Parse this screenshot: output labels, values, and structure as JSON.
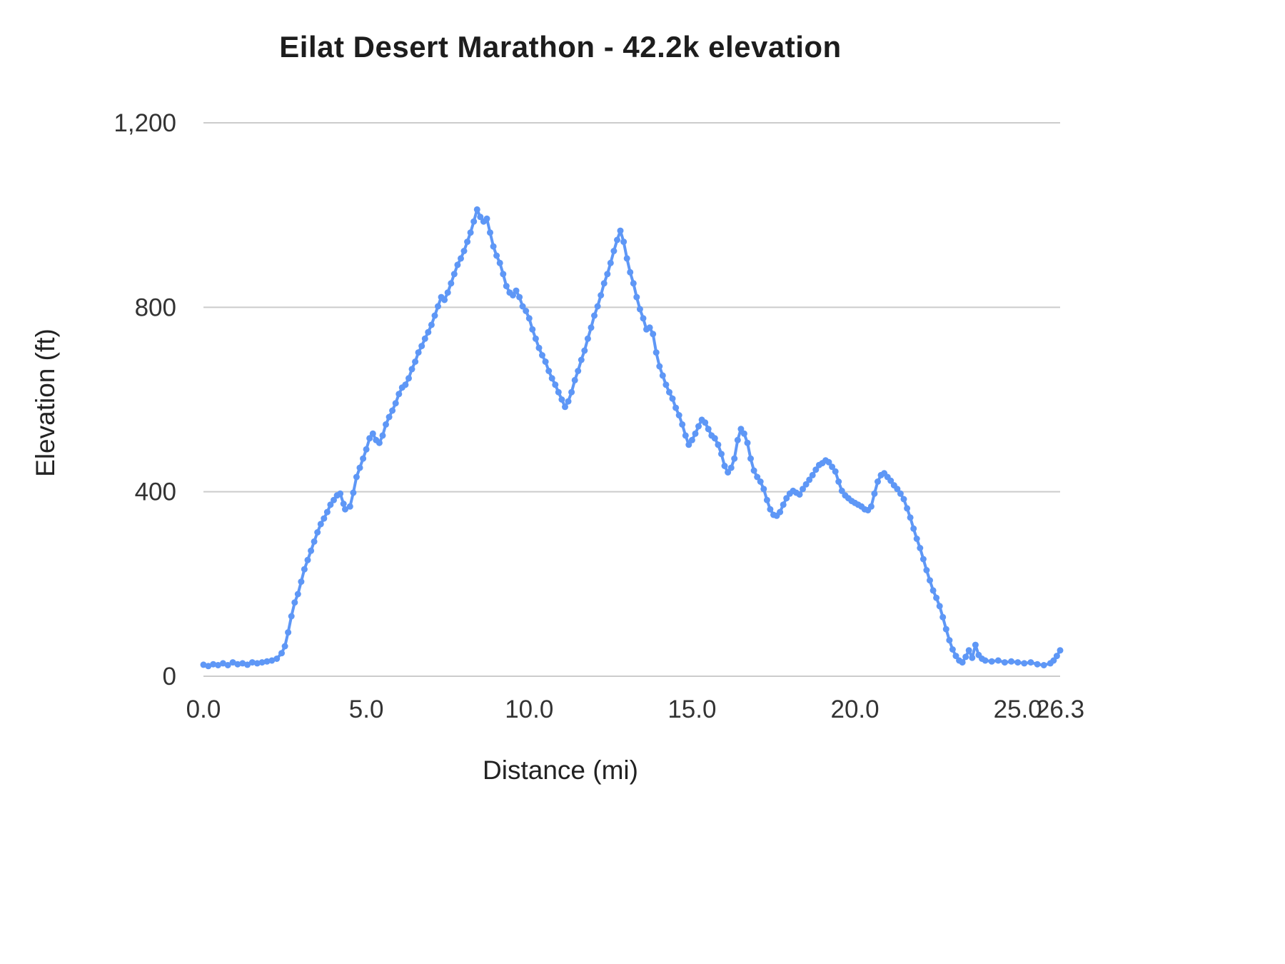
{
  "chart_data": {
    "type": "line",
    "title": "Eilat Desert Marathon - 42.2k elevation",
    "xlabel": "Distance (mi)",
    "ylabel": "Elevation (ft)",
    "xlim": [
      0,
      26.3
    ],
    "ylim": [
      0,
      1200
    ],
    "grid": "horizontal-only",
    "legend": "none",
    "line_color": "#5e97f6",
    "grid_color": "#cccccc",
    "tick_label_color": "#333333",
    "x_ticks": [
      {
        "v": 0.0,
        "label": "0.0"
      },
      {
        "v": 5.0,
        "label": "5.0"
      },
      {
        "v": 10.0,
        "label": "10.0"
      },
      {
        "v": 15.0,
        "label": "15.0"
      },
      {
        "v": 20.0,
        "label": "20.0"
      },
      {
        "v": 25.0,
        "label": "25.0"
      },
      {
        "v": 26.3,
        "label": "26.3"
      }
    ],
    "y_ticks": [
      {
        "v": 0,
        "label": "0"
      },
      {
        "v": 400,
        "label": "400"
      },
      {
        "v": 800,
        "label": "800"
      },
      {
        "v": 1200,
        "label": "1,200"
      }
    ],
    "series": [
      {
        "name": "Elevation",
        "points": [
          [
            0.0,
            25
          ],
          [
            0.15,
            22
          ],
          [
            0.3,
            26
          ],
          [
            0.45,
            24
          ],
          [
            0.6,
            28
          ],
          [
            0.75,
            24
          ],
          [
            0.9,
            30
          ],
          [
            1.05,
            26
          ],
          [
            1.2,
            28
          ],
          [
            1.35,
            25
          ],
          [
            1.5,
            30
          ],
          [
            1.65,
            28
          ],
          [
            1.8,
            30
          ],
          [
            1.95,
            32
          ],
          [
            2.1,
            34
          ],
          [
            2.25,
            38
          ],
          [
            2.4,
            50
          ],
          [
            2.5,
            65
          ],
          [
            2.6,
            95
          ],
          [
            2.7,
            130
          ],
          [
            2.8,
            160
          ],
          [
            2.9,
            178
          ],
          [
            3.0,
            205
          ],
          [
            3.1,
            232
          ],
          [
            3.2,
            252
          ],
          [
            3.3,
            272
          ],
          [
            3.4,
            292
          ],
          [
            3.5,
            312
          ],
          [
            3.6,
            330
          ],
          [
            3.7,
            342
          ],
          [
            3.8,
            356
          ],
          [
            3.9,
            372
          ],
          [
            4.0,
            382
          ],
          [
            4.1,
            392
          ],
          [
            4.2,
            396
          ],
          [
            4.3,
            374
          ],
          [
            4.35,
            362
          ],
          [
            4.5,
            368
          ],
          [
            4.6,
            398
          ],
          [
            4.7,
            432
          ],
          [
            4.8,
            452
          ],
          [
            4.9,
            472
          ],
          [
            5.0,
            492
          ],
          [
            5.1,
            516
          ],
          [
            5.2,
            526
          ],
          [
            5.3,
            512
          ],
          [
            5.4,
            506
          ],
          [
            5.5,
            522
          ],
          [
            5.6,
            546
          ],
          [
            5.7,
            562
          ],
          [
            5.8,
            576
          ],
          [
            5.9,
            592
          ],
          [
            6.0,
            612
          ],
          [
            6.1,
            626
          ],
          [
            6.2,
            632
          ],
          [
            6.3,
            646
          ],
          [
            6.4,
            666
          ],
          [
            6.5,
            682
          ],
          [
            6.6,
            702
          ],
          [
            6.7,
            716
          ],
          [
            6.8,
            732
          ],
          [
            6.9,
            746
          ],
          [
            7.0,
            762
          ],
          [
            7.1,
            782
          ],
          [
            7.2,
            802
          ],
          [
            7.3,
            822
          ],
          [
            7.4,
            816
          ],
          [
            7.5,
            832
          ],
          [
            7.6,
            852
          ],
          [
            7.7,
            872
          ],
          [
            7.8,
            892
          ],
          [
            7.9,
            906
          ],
          [
            8.0,
            922
          ],
          [
            8.1,
            942
          ],
          [
            8.2,
            962
          ],
          [
            8.3,
            986
          ],
          [
            8.4,
            1012
          ],
          [
            8.5,
            996
          ],
          [
            8.6,
            986
          ],
          [
            8.7,
            992
          ],
          [
            8.8,
            962
          ],
          [
            8.9,
            932
          ],
          [
            9.0,
            912
          ],
          [
            9.1,
            896
          ],
          [
            9.2,
            872
          ],
          [
            9.3,
            846
          ],
          [
            9.4,
            832
          ],
          [
            9.5,
            826
          ],
          [
            9.6,
            836
          ],
          [
            9.7,
            822
          ],
          [
            9.8,
            802
          ],
          [
            9.9,
            792
          ],
          [
            10.0,
            776
          ],
          [
            10.1,
            752
          ],
          [
            10.2,
            732
          ],
          [
            10.3,
            712
          ],
          [
            10.4,
            696
          ],
          [
            10.5,
            682
          ],
          [
            10.6,
            662
          ],
          [
            10.7,
            646
          ],
          [
            10.8,
            632
          ],
          [
            10.9,
            616
          ],
          [
            11.0,
            600
          ],
          [
            11.1,
            584
          ],
          [
            11.2,
            596
          ],
          [
            11.3,
            616
          ],
          [
            11.4,
            642
          ],
          [
            11.5,
            662
          ],
          [
            11.6,
            686
          ],
          [
            11.7,
            706
          ],
          [
            11.8,
            732
          ],
          [
            11.9,
            756
          ],
          [
            12.0,
            782
          ],
          [
            12.1,
            802
          ],
          [
            12.2,
            826
          ],
          [
            12.3,
            852
          ],
          [
            12.4,
            872
          ],
          [
            12.5,
            896
          ],
          [
            12.6,
            922
          ],
          [
            12.7,
            946
          ],
          [
            12.8,
            966
          ],
          [
            12.9,
            942
          ],
          [
            13.0,
            906
          ],
          [
            13.1,
            876
          ],
          [
            13.2,
            852
          ],
          [
            13.3,
            822
          ],
          [
            13.4,
            796
          ],
          [
            13.5,
            776
          ],
          [
            13.6,
            752
          ],
          [
            13.7,
            756
          ],
          [
            13.8,
            742
          ],
          [
            13.9,
            702
          ],
          [
            14.0,
            672
          ],
          [
            14.1,
            652
          ],
          [
            14.2,
            632
          ],
          [
            14.3,
            616
          ],
          [
            14.4,
            602
          ],
          [
            14.5,
            582
          ],
          [
            14.6,
            566
          ],
          [
            14.7,
            546
          ],
          [
            14.8,
            522
          ],
          [
            14.9,
            502
          ],
          [
            15.0,
            512
          ],
          [
            15.1,
            526
          ],
          [
            15.2,
            542
          ],
          [
            15.3,
            556
          ],
          [
            15.4,
            550
          ],
          [
            15.5,
            536
          ],
          [
            15.6,
            522
          ],
          [
            15.7,
            516
          ],
          [
            15.8,
            502
          ],
          [
            15.9,
            482
          ],
          [
            16.0,
            456
          ],
          [
            16.1,
            442
          ],
          [
            16.2,
            452
          ],
          [
            16.3,
            472
          ],
          [
            16.4,
            512
          ],
          [
            16.5,
            536
          ],
          [
            16.6,
            526
          ],
          [
            16.7,
            506
          ],
          [
            16.8,
            472
          ],
          [
            16.9,
            446
          ],
          [
            17.0,
            432
          ],
          [
            17.1,
            422
          ],
          [
            17.2,
            406
          ],
          [
            17.3,
            382
          ],
          [
            17.4,
            362
          ],
          [
            17.5,
            350
          ],
          [
            17.6,
            348
          ],
          [
            17.7,
            356
          ],
          [
            17.8,
            372
          ],
          [
            17.9,
            386
          ],
          [
            18.0,
            396
          ],
          [
            18.1,
            402
          ],
          [
            18.2,
            398
          ],
          [
            18.3,
            394
          ],
          [
            18.4,
            406
          ],
          [
            18.5,
            416
          ],
          [
            18.6,
            426
          ],
          [
            18.7,
            436
          ],
          [
            18.8,
            448
          ],
          [
            18.9,
            458
          ],
          [
            19.0,
            462
          ],
          [
            19.1,
            468
          ],
          [
            19.2,
            464
          ],
          [
            19.3,
            454
          ],
          [
            19.4,
            444
          ],
          [
            19.5,
            422
          ],
          [
            19.6,
            402
          ],
          [
            19.7,
            392
          ],
          [
            19.8,
            386
          ],
          [
            19.9,
            380
          ],
          [
            20.0,
            376
          ],
          [
            20.1,
            372
          ],
          [
            20.2,
            368
          ],
          [
            20.3,
            362
          ],
          [
            20.4,
            360
          ],
          [
            20.5,
            368
          ],
          [
            20.6,
            396
          ],
          [
            20.7,
            422
          ],
          [
            20.8,
            436
          ],
          [
            20.9,
            440
          ],
          [
            21.0,
            432
          ],
          [
            21.1,
            424
          ],
          [
            21.2,
            414
          ],
          [
            21.3,
            406
          ],
          [
            21.4,
            396
          ],
          [
            21.5,
            384
          ],
          [
            21.6,
            364
          ],
          [
            21.7,
            344
          ],
          [
            21.8,
            320
          ],
          [
            21.9,
            298
          ],
          [
            22.0,
            278
          ],
          [
            22.1,
            254
          ],
          [
            22.2,
            230
          ],
          [
            22.3,
            208
          ],
          [
            22.4,
            186
          ],
          [
            22.5,
            170
          ],
          [
            22.6,
            152
          ],
          [
            22.7,
            128
          ],
          [
            22.8,
            102
          ],
          [
            22.9,
            78
          ],
          [
            23.0,
            58
          ],
          [
            23.1,
            44
          ],
          [
            23.2,
            34
          ],
          [
            23.3,
            30
          ],
          [
            23.4,
            42
          ],
          [
            23.5,
            56
          ],
          [
            23.6,
            40
          ],
          [
            23.7,
            68
          ],
          [
            23.8,
            46
          ],
          [
            23.9,
            38
          ],
          [
            24.0,
            34
          ],
          [
            24.2,
            32
          ],
          [
            24.4,
            34
          ],
          [
            24.6,
            30
          ],
          [
            24.8,
            32
          ],
          [
            25.0,
            30
          ],
          [
            25.2,
            28
          ],
          [
            25.4,
            30
          ],
          [
            25.6,
            26
          ],
          [
            25.8,
            24
          ],
          [
            26.0,
            28
          ],
          [
            26.1,
            34
          ],
          [
            26.2,
            44
          ],
          [
            26.3,
            56
          ]
        ]
      }
    ]
  }
}
